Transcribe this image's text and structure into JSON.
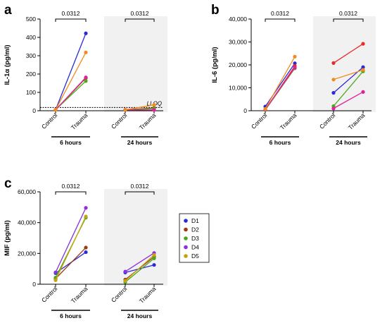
{
  "figure": {
    "panels": [
      {
        "letter": "a"
      },
      {
        "letter": "b"
      },
      {
        "letter": "c"
      }
    ],
    "legend": {
      "entries": [
        {
          "name": "D1",
          "color": "#2a2ad6"
        },
        {
          "name": "D2",
          "color": "#9a3a16"
        },
        {
          "name": "D3",
          "color": "#4aa91a"
        },
        {
          "name": "D4",
          "color": "#8a30e0"
        },
        {
          "name": "D5",
          "color": "#c2a50e"
        }
      ]
    },
    "lloq_label": "LLOQ"
  },
  "chart_data": [
    {
      "type": "line",
      "panel": "a",
      "ylabel": "IL-1α (pg/ml)",
      "ylim": [
        0,
        500
      ],
      "yticks": [
        0,
        100,
        200,
        300,
        400,
        500
      ],
      "ytick_labels": [
        "0",
        "100",
        "200",
        "300",
        "400",
        "500"
      ],
      "groups": [
        {
          "name": "6 hours",
          "categories": [
            "Control",
            "Trauma"
          ],
          "significance": "0.0312"
        },
        {
          "name": "24 hours",
          "categories": [
            "Control",
            "Trauma"
          ],
          "significance": "0.0312"
        }
      ],
      "lloq": 18,
      "grid": false,
      "series": [
        {
          "color": "#2a2ad6",
          "values": [
            [
              5,
              422
            ],
            [
              5,
              14
            ]
          ]
        },
        {
          "color": "#9a3a16",
          "values": [
            [
              5,
              178
            ],
            [
              5,
              15
            ]
          ]
        },
        {
          "color": "#4aa91a",
          "values": [
            [
              5,
              162
            ],
            [
              5,
              12
            ]
          ]
        },
        {
          "color": "#e0219a",
          "values": [
            [
              5,
              182
            ],
            [
              5,
              4
            ]
          ]
        },
        {
          "color": "#f28a1e",
          "values": [
            [
              5,
              318
            ],
            [
              5,
              32
            ]
          ]
        }
      ]
    },
    {
      "type": "line",
      "panel": "b",
      "ylabel": "IL-6 (pg/ml)",
      "ylim": [
        0,
        40000
      ],
      "yticks": [
        0,
        10000,
        20000,
        30000,
        40000
      ],
      "ytick_labels": [
        "0",
        "10,000",
        "20,000",
        "30,000",
        "40,000"
      ],
      "groups": [
        {
          "name": "6 hours",
          "categories": [
            "Control",
            "Trauma"
          ],
          "significance": "0.0312"
        },
        {
          "name": "24 hours",
          "categories": [
            "Control",
            "Trauma"
          ],
          "significance": "0.0312"
        }
      ],
      "grid": false,
      "series": [
        {
          "color": "#2a2ad6",
          "values": [
            [
              1800,
              20700
            ],
            [
              7800,
              19000
            ]
          ]
        },
        {
          "color": "#e82a2a",
          "values": [
            [
              400,
              19500
            ],
            [
              20800,
              29200
            ]
          ]
        },
        {
          "color": "#4aa91a",
          "values": [
            [
              300,
              18500
            ],
            [
              2000,
              17200
            ]
          ]
        },
        {
          "color": "#e0219a",
          "values": [
            [
              500,
              18800
            ],
            [
              1000,
              8200
            ]
          ]
        },
        {
          "color": "#f28a1e",
          "values": [
            [
              800,
              23600
            ],
            [
              13600,
              17800
            ]
          ]
        }
      ]
    },
    {
      "type": "line",
      "panel": "c",
      "ylabel": "MIF (pg/ml)",
      "ylim": [
        0,
        60000
      ],
      "yticks": [
        0,
        20000,
        40000,
        60000
      ],
      "ytick_labels": [
        "0",
        "20,000",
        "40,000",
        "60,000"
      ],
      "groups": [
        {
          "name": "6 hours",
          "categories": [
            "Control",
            "Trauma"
          ],
          "significance": "0.0312"
        },
        {
          "name": "24 hours",
          "categories": [
            "Control",
            "Trauma"
          ],
          "significance": "0.0312"
        }
      ],
      "grid": false,
      "series": [
        {
          "name": "D1",
          "color": "#2a2ad6",
          "values": [
            [
              7200,
              20800
            ],
            [
              7600,
              12500
            ]
          ]
        },
        {
          "name": "D2",
          "color": "#9a3a16",
          "values": [
            [
              3600,
              23800
            ],
            [
              3000,
              17800
            ]
          ]
        },
        {
          "name": "D3",
          "color": "#4aa91a",
          "values": [
            [
              4300,
              43200
            ],
            [
              1400,
              16800
            ]
          ]
        },
        {
          "name": "D4",
          "color": "#8a30e0",
          "values": [
            [
              7700,
              49600
            ],
            [
              8200,
              20300
            ]
          ]
        },
        {
          "name": "D5",
          "color": "#c2a50e",
          "values": [
            [
              2600,
              44000
            ],
            [
              2200,
              19000
            ]
          ]
        }
      ]
    }
  ]
}
